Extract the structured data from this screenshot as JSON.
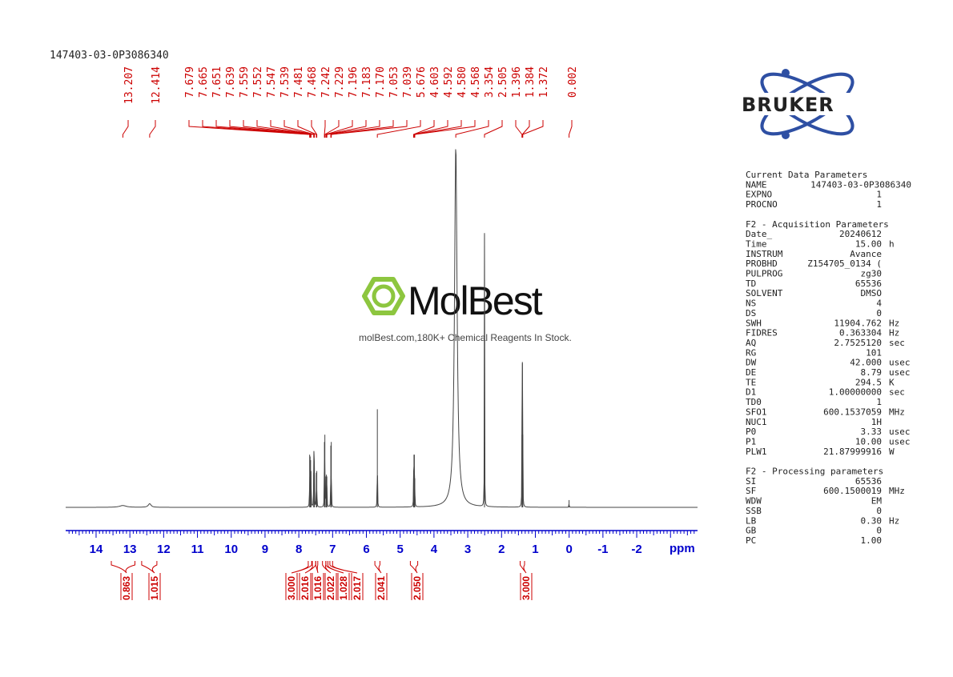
{
  "sample_name": "147403-03-0P3086340",
  "logo": {
    "text": "BRUKER",
    "color": "#2e4fa3"
  },
  "watermark": {
    "brand": "MolBest",
    "tagline": "molBest.com,180K+ Chemical Reagents In Stock.",
    "color": "#8dc63f"
  },
  "colors": {
    "spectrum": "#444444",
    "axis": "#0000cc",
    "annotation": "#cc0000"
  },
  "chart_data": {
    "type": "line",
    "title": "",
    "xlabel": "ppm",
    "ylabel": "",
    "xlim": [
      14.9,
      -3.8
    ],
    "x_reversed": true,
    "x_ticks": [
      "14",
      "13",
      "12",
      "11",
      "10",
      "9",
      "8",
      "7",
      "6",
      "5",
      "4",
      "3",
      "2",
      "1",
      "0",
      "-1",
      "-2"
    ],
    "grid": false,
    "peak_labels": [
      "13.207",
      "12.414",
      "7.679",
      "7.665",
      "7.651",
      "7.639",
      "7.559",
      "7.552",
      "7.547",
      "7.539",
      "7.481",
      "7.468",
      "7.242",
      "7.229",
      "7.196",
      "7.183",
      "7.170",
      "7.053",
      "7.039",
      "5.676",
      "4.603",
      "4.592",
      "4.580",
      "4.568",
      "3.354",
      "2.505",
      "1.396",
      "1.384",
      "1.372",
      "0.002"
    ],
    "peaks": [
      {
        "ppm": 13.207,
        "height": 0.005,
        "width": 0.12
      },
      {
        "ppm": 12.414,
        "height": 0.01,
        "width": 0.05
      },
      {
        "ppm": 7.679,
        "height": 0.145
      },
      {
        "ppm": 7.665,
        "height": 0.14
      },
      {
        "ppm": 7.651,
        "height": 0.13
      },
      {
        "ppm": 7.639,
        "height": 0.1
      },
      {
        "ppm": 7.559,
        "height": 0.095
      },
      {
        "ppm": 7.552,
        "height": 0.1
      },
      {
        "ppm": 7.547,
        "height": 0.1
      },
      {
        "ppm": 7.539,
        "height": 0.09
      },
      {
        "ppm": 7.481,
        "height": 0.095
      },
      {
        "ppm": 7.468,
        "height": 0.1
      },
      {
        "ppm": 7.242,
        "height": 0.18
      },
      {
        "ppm": 7.229,
        "height": 0.2
      },
      {
        "ppm": 7.196,
        "height": 0.085
      },
      {
        "ppm": 7.183,
        "height": 0.09
      },
      {
        "ppm": 7.17,
        "height": 0.085
      },
      {
        "ppm": 7.053,
        "height": 0.17
      },
      {
        "ppm": 7.039,
        "height": 0.18
      },
      {
        "ppm": 5.676,
        "height": 0.27
      },
      {
        "ppm": 4.603,
        "height": 0.08
      },
      {
        "ppm": 4.592,
        "height": 0.145
      },
      {
        "ppm": 4.58,
        "height": 0.145
      },
      {
        "ppm": 4.568,
        "height": 0.08
      },
      {
        "ppm": 3.354,
        "height": 1.0,
        "width": 0.045
      },
      {
        "ppm": 2.505,
        "height": 0.755
      },
      {
        "ppm": 1.396,
        "height": 0.2
      },
      {
        "ppm": 1.384,
        "height": 0.4
      },
      {
        "ppm": 1.372,
        "height": 0.2
      },
      {
        "ppm": 0.002,
        "height": 0.02
      }
    ],
    "integrals": [
      {
        "value": "0.863",
        "from": 13.55,
        "to": 12.85
      },
      {
        "value": "1.015",
        "from": 12.65,
        "to": 12.2
      },
      {
        "value": "3.000",
        "from": 7.72,
        "to": 7.62
      },
      {
        "value": "2.016",
        "from": 7.6,
        "to": 7.5
      },
      {
        "value": "1.016",
        "from": 7.5,
        "to": 7.44
      },
      {
        "value": "2.022",
        "from": 7.3,
        "to": 7.2
      },
      {
        "value": "1.028",
        "from": 7.2,
        "to": 7.14
      },
      {
        "value": "2.017",
        "from": 7.08,
        "to": 7.0
      },
      {
        "value": "2.041",
        "from": 5.75,
        "to": 5.6
      },
      {
        "value": "2.050",
        "from": 4.7,
        "to": 4.48
      },
      {
        "value": "3.000",
        "from": 1.45,
        "to": 1.32
      }
    ]
  },
  "params": {
    "current": {
      "title": "Current Data Parameters",
      "rows": [
        {
          "key": "NAME",
          "value": "147403-03-0P3086340",
          "unit": ""
        },
        {
          "key": "EXPNO",
          "value": "1",
          "unit": ""
        },
        {
          "key": "PROCNO",
          "value": "1",
          "unit": ""
        }
      ]
    },
    "acquisition": {
      "title": "F2 - Acquisition Parameters",
      "rows": [
        {
          "key": "Date_",
          "value": "20240612",
          "unit": ""
        },
        {
          "key": "Time",
          "value": "15.00",
          "unit": "h"
        },
        {
          "key": "INSTRUM",
          "value": "Avance",
          "unit": ""
        },
        {
          "key": "PROBHD",
          "value": "Z154705_0134 (",
          "unit": ""
        },
        {
          "key": "PULPROG",
          "value": "zg30",
          "unit": ""
        },
        {
          "key": "TD",
          "value": "65536",
          "unit": ""
        },
        {
          "key": "SOLVENT",
          "value": "DMSO",
          "unit": ""
        },
        {
          "key": "NS",
          "value": "4",
          "unit": ""
        },
        {
          "key": "DS",
          "value": "0",
          "unit": ""
        },
        {
          "key": "SWH",
          "value": "11904.762",
          "unit": "Hz"
        },
        {
          "key": "FIDRES",
          "value": "0.363304",
          "unit": "Hz"
        },
        {
          "key": "AQ",
          "value": "2.7525120",
          "unit": "sec"
        },
        {
          "key": "RG",
          "value": "101",
          "unit": ""
        },
        {
          "key": "DW",
          "value": "42.000",
          "unit": "usec"
        },
        {
          "key": "DE",
          "value": "8.79",
          "unit": "usec"
        },
        {
          "key": "TE",
          "value": "294.5",
          "unit": "K"
        },
        {
          "key": "D1",
          "value": "1.00000000",
          "unit": "sec"
        },
        {
          "key": "TD0",
          "value": "1",
          "unit": ""
        },
        {
          "key": "SFO1",
          "value": "600.1537059",
          "unit": "MHz"
        },
        {
          "key": "NUC1",
          "value": "1H",
          "unit": ""
        },
        {
          "key": "P0",
          "value": "3.33",
          "unit": "usec"
        },
        {
          "key": "P1",
          "value": "10.00",
          "unit": "usec"
        },
        {
          "key": "PLW1",
          "value": "21.87999916",
          "unit": "W"
        }
      ]
    },
    "processing": {
      "title": "F2 - Processing parameters",
      "rows": [
        {
          "key": "SI",
          "value": "65536",
          "unit": ""
        },
        {
          "key": "SF",
          "value": "600.1500019",
          "unit": "MHz"
        },
        {
          "key": "WDW",
          "value": "EM",
          "unit": ""
        },
        {
          "key": "SSB",
          "value": "0",
          "unit": ""
        },
        {
          "key": "LB",
          "value": "0.30",
          "unit": "Hz"
        },
        {
          "key": "GB",
          "value": "0",
          "unit": ""
        },
        {
          "key": "PC",
          "value": "1.00",
          "unit": ""
        }
      ]
    }
  }
}
